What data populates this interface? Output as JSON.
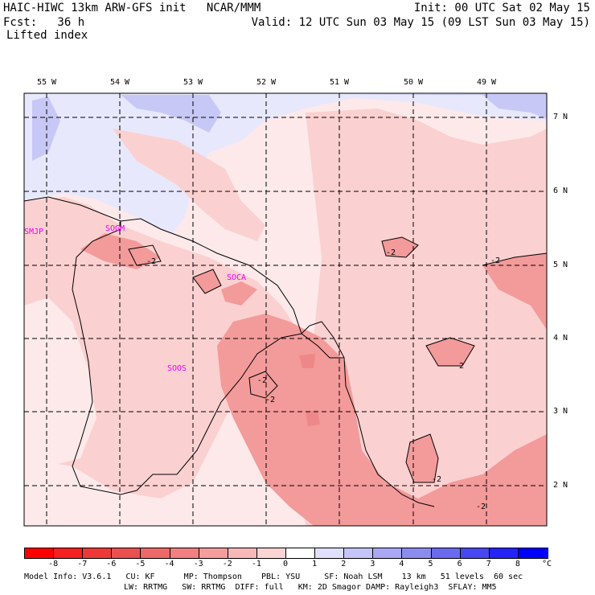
{
  "header": {
    "model_title": "HAIC-HIWC 13km ARW-GFS init   NCAR/MMM",
    "forecast": "Fcst:   36 h",
    "field_name": "Lifted index",
    "init_time": "Init: 00 UTC Sat 02 May 15",
    "valid_time": "Valid: 12 UTC Sun 03 May 15 (09 LST Sun 03 May 15)"
  },
  "map": {
    "lon_labels": [
      "55 W",
      "54 W",
      "53 W",
      "52 W",
      "51 W",
      "50 W",
      "49 W"
    ],
    "lat_labels": [
      "7 N",
      "6 N",
      "5 N",
      "4 N",
      "3 N",
      "2 N"
    ],
    "stations": [
      "SMJP",
      "SOGM",
      "SOCA",
      "SOOS"
    ],
    "contour_label": "-2",
    "colors": {
      "background": "#fde9e9",
      "light_pink": "#fbd0d0",
      "pink": "#f7b3b3",
      "rose": "#f39a9a",
      "light_blue": "#e8e8fc",
      "blue": "#c8c8f6"
    }
  },
  "colorbar": {
    "labels": [
      "-8",
      "-7",
      "-6",
      "-5",
      "-4",
      "-3",
      "-2",
      "-1",
      "0",
      "1",
      "2",
      "3",
      "4",
      "5",
      "6",
      "7",
      "8"
    ],
    "unit": "°C",
    "colors": [
      "#ff0000",
      "#f52020",
      "#ee3838",
      "#ea5050",
      "#ee6868",
      "#f28080",
      "#f59c9c",
      "#f8b8b8",
      "#fbd4d4",
      "#ffffff",
      "#e0e0fc",
      "#c4c4f8",
      "#a8a8f4",
      "#8c8cf0",
      "#6a6aee",
      "#4848f2",
      "#2424f8",
      "#0000ff"
    ]
  },
  "footer": {
    "line1": "Model Info: V3.6.1   CU: KF      MP: Thompson    PBL: YSU     SF: Noah LSM    13 km   51 levels  60 sec",
    "line2": "LW: RRTMG   SW: RRTMG  DIFF: full   KM: 2D Smagor DAMP: Rayleigh3  SFLAY: MM5"
  }
}
